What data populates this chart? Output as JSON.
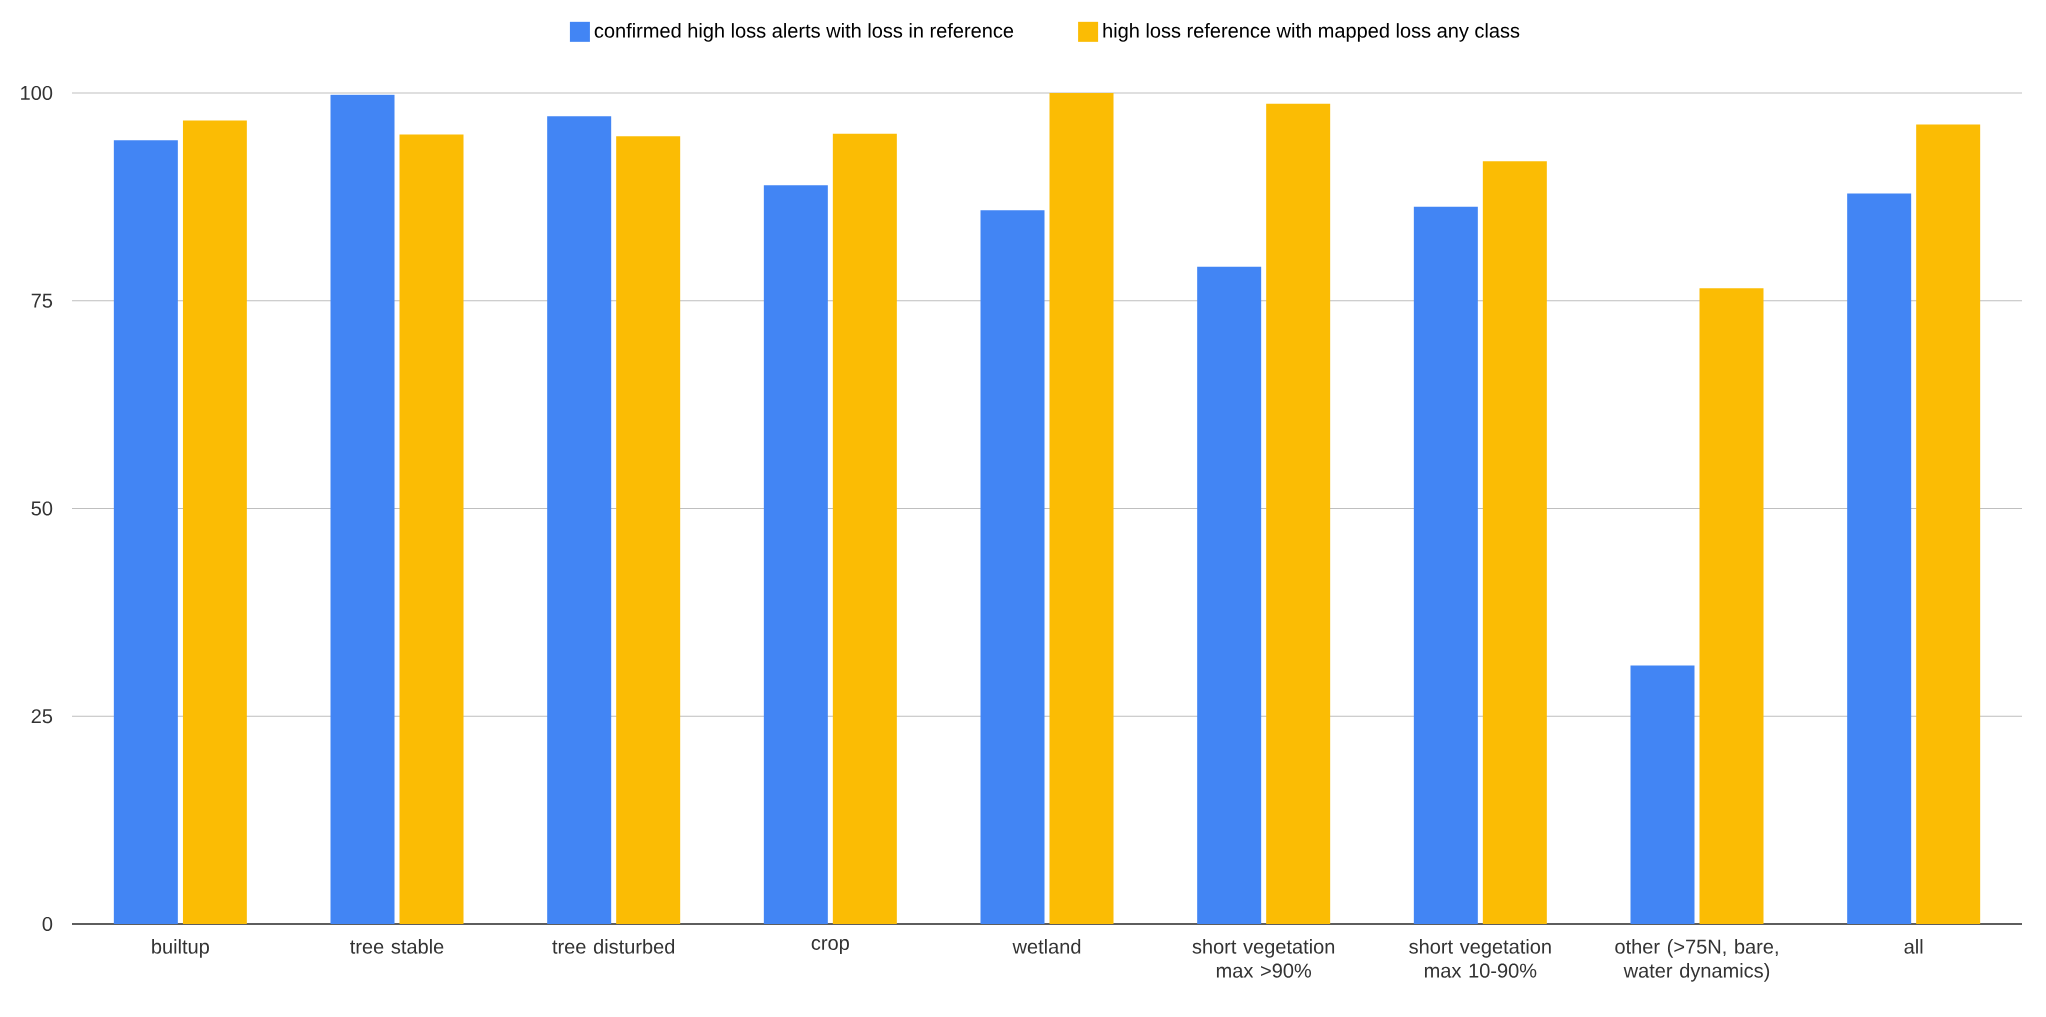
{
  "chart_data": {
    "type": "bar",
    "categories": [
      "builtup",
      "tree stable",
      "tree disturbed",
      "crop",
      "wetland",
      "short vegetation max >90%",
      "short vegetation max 10-90%",
      "other (>75N, bare, water dynamics)",
      "all"
    ],
    "series": [
      {
        "name": "confirmed high loss alerts with loss in reference",
        "color": "#4285f4",
        "values": [
          94.3,
          99.8,
          97.2,
          88.9,
          85.9,
          79.1,
          86.3,
          31.1,
          87.9
        ]
      },
      {
        "name": "high loss reference with mapped loss any class",
        "color": "#fbbc04",
        "values": [
          96.7,
          95.0,
          94.8,
          95.1,
          100,
          98.7,
          91.8,
          76.5,
          96.2
        ]
      }
    ],
    "ylim": [
      0,
      100
    ],
    "yticks": [
      0,
      25,
      50,
      75,
      100
    ],
    "grid": "y",
    "legend": "top"
  }
}
